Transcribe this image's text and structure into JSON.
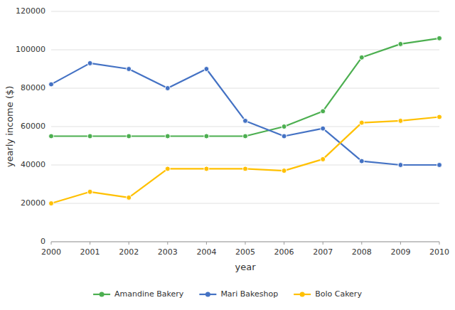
{
  "chart_data": {
    "type": "line",
    "x": [
      2000,
      2001,
      2002,
      2003,
      2004,
      2005,
      2006,
      2007,
      2008,
      2009,
      2010
    ],
    "series": [
      {
        "name": "Amandine Bakery",
        "color": "#4caf50",
        "marker": "circle",
        "values": [
          55000,
          55000,
          55000,
          55000,
          55000,
          55000,
          60000,
          68000,
          96000,
          103000,
          106000
        ]
      },
      {
        "name": "Mari Bakeshop",
        "color": "#4472c4",
        "marker": "circle",
        "values": [
          82000,
          93000,
          90000,
          80000,
          90000,
          63000,
          55000,
          59000,
          42000,
          40000,
          40000
        ]
      },
      {
        "name": "Bolo Cakery",
        "color": "#ffc000",
        "marker": "circle",
        "values": [
          20000,
          26000,
          23000,
          38000,
          38000,
          38000,
          37000,
          43000,
          62000,
          63000,
          65000
        ]
      }
    ],
    "x_label": "year",
    "y_label": "yearly income ($)",
    "xlim": [
      2000,
      2010
    ],
    "xticks": [
      2000,
      2001,
      2002,
      2003,
      2004,
      2005,
      2006,
      2007,
      2008,
      2009,
      2010
    ],
    "ylim": [
      0,
      120000
    ],
    "yticks": [
      0,
      20000,
      40000,
      60000,
      80000,
      100000,
      120000
    ],
    "grid": true,
    "legend": "bottom"
  }
}
